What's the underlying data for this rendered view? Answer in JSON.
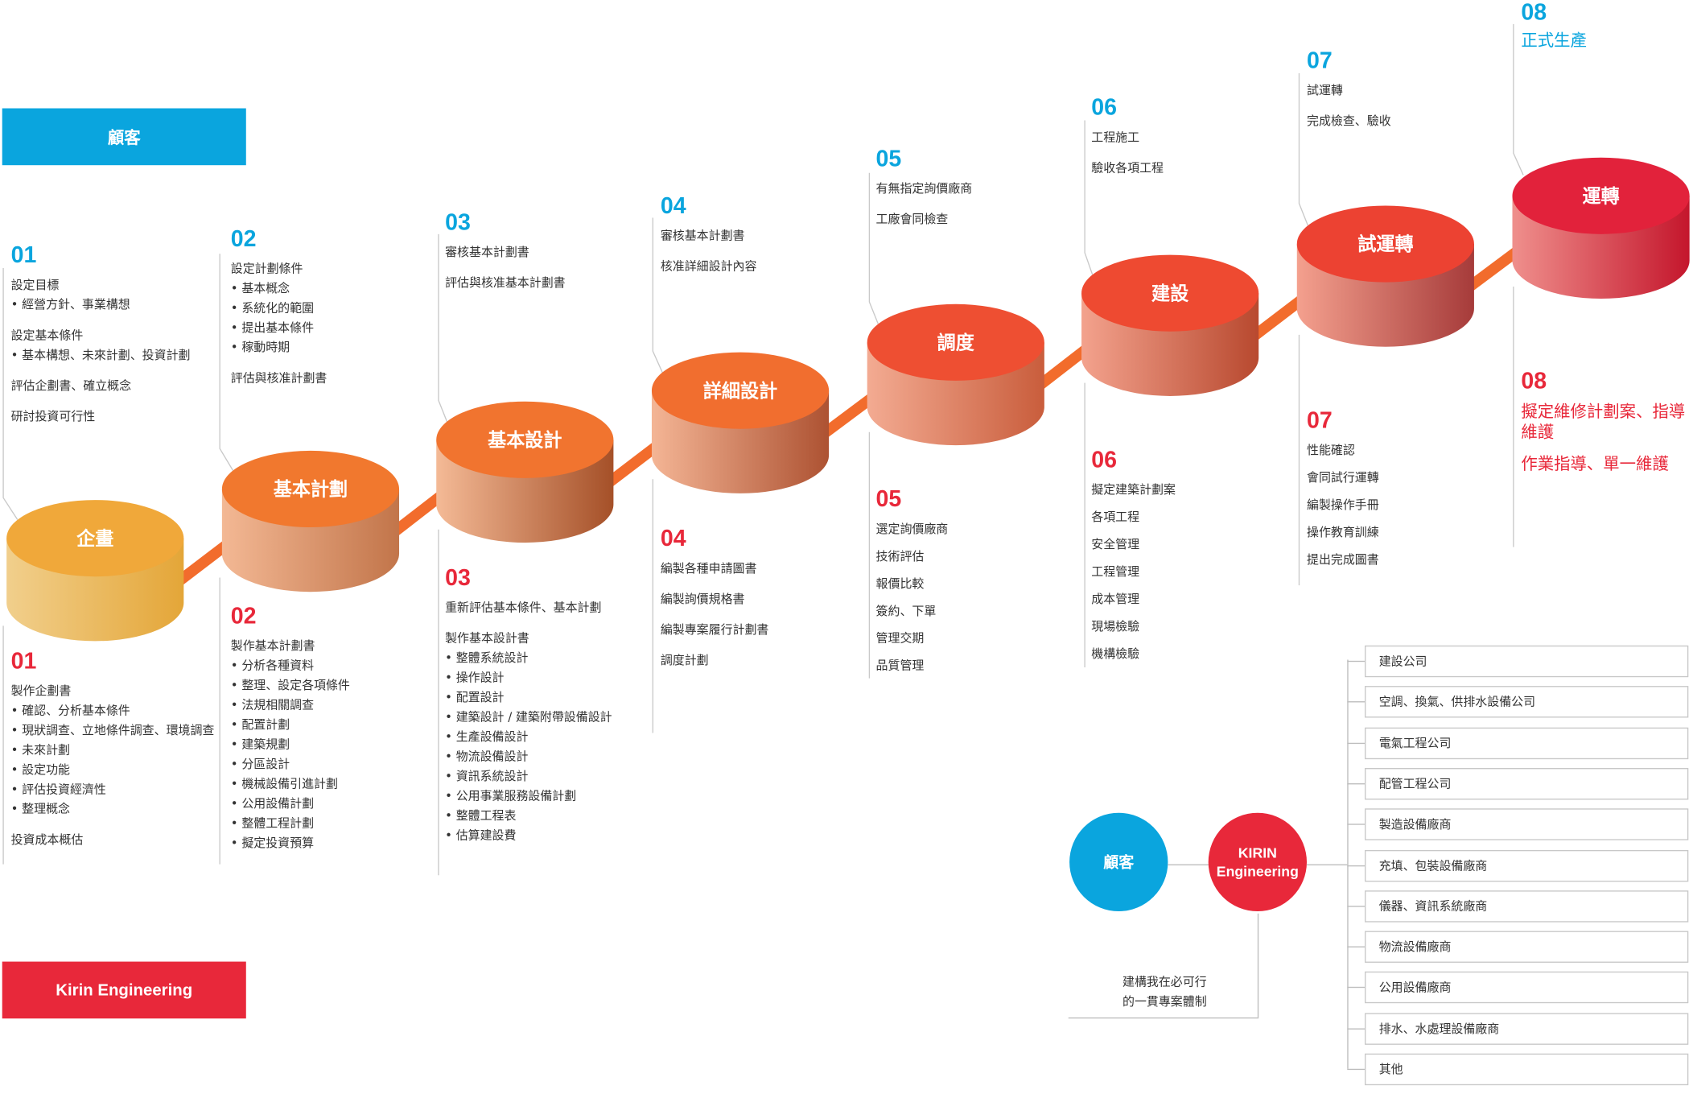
{
  "legend": {
    "customer": "顧客",
    "kirin": "Kirin Engineering"
  },
  "colors": {
    "customer": "#0aa5de",
    "kirin": "#e8283a"
  },
  "stages": [
    {
      "name": "企畫",
      "step": "01",
      "customer": [
        {
          "title": "設定目標",
          "items": [
            "經營方針、事業構想"
          ]
        },
        {
          "title": "設定基本條件",
          "items": [
            "基本構想、未來計劃、投資計劃"
          ]
        },
        {
          "title": "評估企劃書、確立概念",
          "items": []
        },
        {
          "title": "研討投資可行性",
          "items": []
        }
      ],
      "kirin": [
        {
          "title": "製作企劃書",
          "items": [
            "確認、分析基本條件",
            "現狀調查、立地條件調查、環境調查",
            "未來計劃",
            "設定功能",
            "評估投資經濟性",
            "整理概念"
          ]
        },
        {
          "title": "投資成本概估",
          "items": []
        }
      ]
    },
    {
      "name": "基本計劃",
      "step": "02",
      "customer": [
        {
          "title": "設定計劃條件",
          "items": [
            "基本概念",
            "系統化的範圍",
            "提出基本條件",
            "稼動時期"
          ]
        },
        {
          "title": "評估與核准計劃書",
          "items": []
        }
      ],
      "kirin": [
        {
          "title": "製作基本計劃書",
          "items": [
            "分析各種資料",
            "整理、設定各項條件",
            "法規相關調查",
            "配置計劃",
            "建築規劃",
            "分區設計",
            "機械設備引進計劃",
            "公用設備計劃",
            "整體工程計劃",
            "擬定投資預算"
          ]
        }
      ]
    },
    {
      "name": "基本設計",
      "step": "03",
      "customer": [
        {
          "title": "審核基本計劃書",
          "items": []
        },
        {
          "title": "評估與核准基本計劃書",
          "items": []
        }
      ],
      "kirin": [
        {
          "title": "重新評估基本條件、基本計劃",
          "items": []
        },
        {
          "title": "製作基本設計書",
          "items": [
            "整體系統設計",
            "操作設計",
            "配置設計",
            "建築設計 / 建築附帶設備設計",
            "生產設備設計",
            "物流設備設計",
            "資訊系統設計",
            "公用事業服務設備計劃",
            "整體工程表",
            "估算建設費"
          ]
        }
      ]
    },
    {
      "name": "詳細設計",
      "step": "04",
      "customer": [
        {
          "title": "審核基本計劃書",
          "items": []
        },
        {
          "title": "核准詳細設計內容",
          "items": []
        }
      ],
      "kirin": [
        {
          "title": "編製各種申請圖書",
          "items": []
        },
        {
          "title": "編製詢價規格書",
          "items": []
        },
        {
          "title": "編製專案履行計劃書",
          "items": []
        },
        {
          "title": "調度計劃",
          "items": []
        }
      ]
    },
    {
      "name": "調度",
      "step": "05",
      "customer": [
        {
          "title": "有無指定詢價廠商",
          "items": []
        },
        {
          "title": "工廠會同檢查",
          "items": []
        }
      ],
      "kirin": [
        {
          "title": "選定詢價廠商",
          "items": []
        },
        {
          "title": "技術評估",
          "items": []
        },
        {
          "title": "報價比較",
          "items": []
        },
        {
          "title": "簽約、下單",
          "items": []
        },
        {
          "title": "管理交期",
          "items": []
        },
        {
          "title": "品質管理",
          "items": []
        }
      ]
    },
    {
      "name": "建設",
      "step": "06",
      "customer": [
        {
          "title": "工程施工",
          "items": []
        },
        {
          "title": "驗收各項工程",
          "items": []
        }
      ],
      "kirin": [
        {
          "title": "擬定建築計劃案",
          "items": []
        },
        {
          "title": "各項工程",
          "items": []
        },
        {
          "title": "安全管理",
          "items": []
        },
        {
          "title": "工程管理",
          "items": []
        },
        {
          "title": "成本管理",
          "items": []
        },
        {
          "title": "現場檢驗",
          "items": []
        },
        {
          "title": "機構檢驗",
          "items": []
        }
      ]
    },
    {
      "name": "試運轉",
      "step": "07",
      "customer": [
        {
          "title": "試運轉",
          "items": []
        },
        {
          "title": "完成檢查、驗收",
          "items": []
        }
      ],
      "kirin": [
        {
          "title": "性能確認",
          "items": []
        },
        {
          "title": "會同試行運轉",
          "items": []
        },
        {
          "title": "編製操作手冊",
          "items": []
        },
        {
          "title": "操作教育訓練",
          "items": []
        },
        {
          "title": "提出完成圖書",
          "items": []
        }
      ]
    },
    {
      "name": "運轉",
      "step": "08",
      "customer": [
        {
          "title": "正式生產",
          "items": []
        }
      ],
      "kirin": [
        {
          "title": "擬定維修計劃案、指導維護",
          "items": []
        },
        {
          "title": "作業指導、單一維護",
          "items": []
        }
      ]
    }
  ],
  "structure": {
    "customer": "顧客",
    "kirin_line1": "KIRIN",
    "kirin_line2": "Engineering",
    "caption_line1": "建構我在必可行",
    "caption_line2": "的一貫專案體制",
    "vendors": [
      "建設公司",
      "空調、換氣、供排水設備公司",
      "電氣工程公司",
      "配管工程公司",
      "製造設備廠商",
      "充填、包裝設備廠商",
      "儀器、資訊系統廠商",
      "物流設備廠商",
      "公用設備廠商",
      "排水、水處理設備廠商",
      "其他"
    ]
  }
}
